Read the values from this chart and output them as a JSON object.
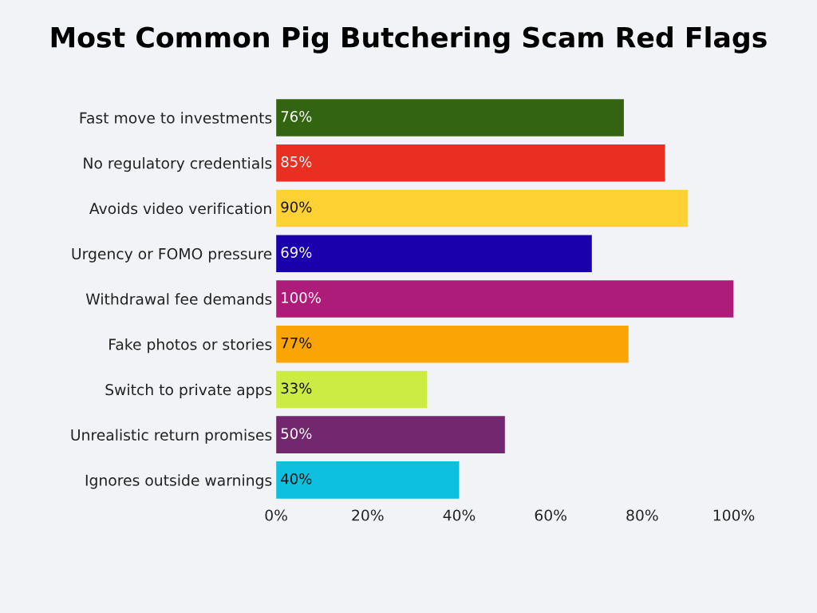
{
  "chart_data": {
    "type": "bar",
    "orientation": "horizontal",
    "title": "Most Common Pig Butchering Scam Red Flags",
    "categories": [
      "Fast move to investments",
      "No regulatory credentials",
      "Avoids video verification",
      "Urgency or FOMO pressure",
      "Withdrawal fee demands",
      "Fake photos or stories",
      "Switch to private apps",
      "Unrealistic return promises",
      "Ignores outside warnings"
    ],
    "values": [
      76,
      85,
      90,
      69,
      100,
      77,
      33,
      50,
      40
    ],
    "colors": [
      "#336411",
      "#e82f22",
      "#ffd233",
      "#1a00ac",
      "#ac1c78",
      "#fba504",
      "#cdec43",
      "#72276f",
      "#0dc0df"
    ],
    "value_labels": [
      "76%",
      "85%",
      "90%",
      "69%",
      "100%",
      "77%",
      "33%",
      "50%",
      "40%"
    ],
    "xlim": [
      0,
      100
    ],
    "xticks": [
      {
        "value": 0,
        "label": "0%"
      },
      {
        "value": 20,
        "label": "20%"
      },
      {
        "value": 40,
        "label": "40%"
      },
      {
        "value": 60,
        "label": "60%"
      },
      {
        "value": 80,
        "label": "80%"
      },
      {
        "value": 100,
        "label": "100%"
      }
    ],
    "grid": false,
    "legend": false
  }
}
